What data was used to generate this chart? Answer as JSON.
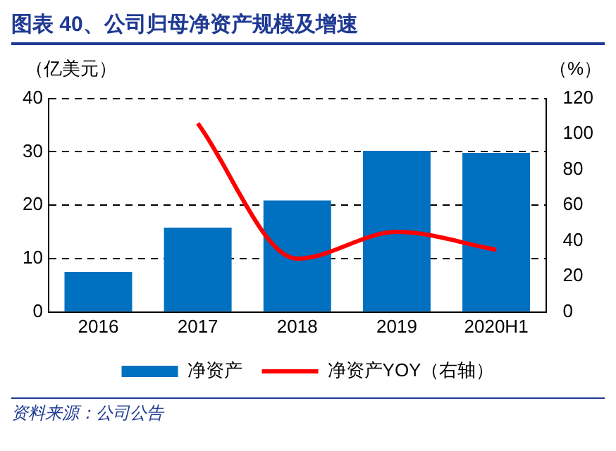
{
  "chart_data": {
    "type": "bar",
    "title": "图表 40、公司归母净资产规模及增速",
    "ylabel": "（亿美元）",
    "y2label": "（%）",
    "categories": [
      "2016",
      "2017",
      "2018",
      "2019",
      "2020H1"
    ],
    "series": [
      {
        "name": "净资产",
        "color": "#0070c0",
        "values": [
          7.5,
          15.8,
          20.9,
          30.2,
          29.8
        ]
      },
      {
        "name": "净资产YOY（右轴）",
        "type": "line",
        "axis": "y2",
        "color": "#ff0000",
        "values": [
          null,
          106,
          30,
          45,
          35
        ]
      }
    ],
    "ylim": [
      0,
      40
    ],
    "yticks": [
      0,
      10,
      20,
      30,
      40
    ],
    "y2lim": [
      0,
      120
    ],
    "y2ticks": [
      0,
      20,
      40,
      60,
      80,
      100,
      120
    ],
    "grid": "y",
    "legend": "bottom",
    "marker": "none",
    "line_style": "solid",
    "annotations": [
      "资料来源：公司公告"
    ]
  }
}
